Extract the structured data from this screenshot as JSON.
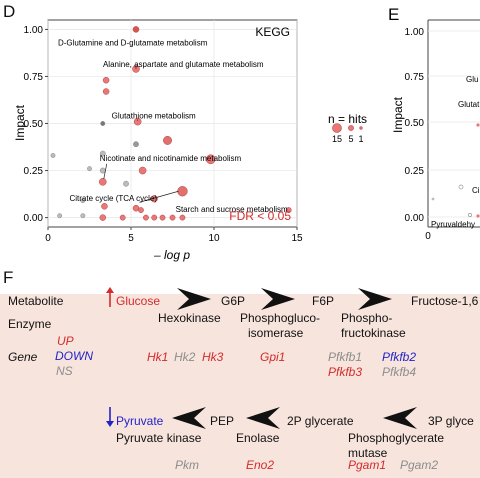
{
  "panel_d": {
    "letter": "D",
    "chart_title": "KEGG",
    "fdr_label": "FDR < 0.05",
    "xlabel": "– log p",
    "ylabel": "Impact",
    "legend": {
      "title": "n = hits",
      "sizes": [
        "15",
        "5",
        "1"
      ]
    }
  },
  "panel_e": {
    "letter": "E",
    "ylabel": "Impact",
    "fragments": [
      "Glu",
      "Glutat",
      "Ci",
      "Pyruvaldehy"
    ]
  },
  "chart_data": [
    {
      "type": "scatter",
      "title": "KEGG",
      "xlabel": "– log p",
      "ylabel": "Impact",
      "xlim": [
        0,
        15
      ],
      "ylim": [
        -0.05,
        1.05
      ],
      "xticks": [
        "0",
        "5",
        "10",
        "15"
      ],
      "yticks": [
        "0.00",
        "0.25",
        "0.50",
        "0.75",
        "1.00"
      ],
      "grid": true,
      "points": [
        {
          "x": 5.3,
          "y": 1.0,
          "n": 3,
          "fill": "#d9534f"
        },
        {
          "x": 5.3,
          "y": 0.79,
          "n": 5,
          "fill": "#e87777"
        },
        {
          "x": 3.5,
          "y": 0.73,
          "n": 3,
          "fill": "#e87777"
        },
        {
          "x": 3.5,
          "y": 0.67,
          "n": 3,
          "fill": "#e87777"
        },
        {
          "x": 5.4,
          "y": 0.51,
          "n": 5,
          "fill": "#e87777"
        },
        {
          "x": 3.3,
          "y": 0.5,
          "n": 1,
          "fill": "#777777"
        },
        {
          "x": 7.2,
          "y": 0.41,
          "n": 8,
          "fill": "#e07070"
        },
        {
          "x": 5.3,
          "y": 0.39,
          "n": 2,
          "fill": "#999999"
        },
        {
          "x": 0.3,
          "y": 0.33,
          "n": 1,
          "fill": "#bbbbbb"
        },
        {
          "x": 3.3,
          "y": 0.34,
          "n": 2,
          "fill": "#bbbbbb"
        },
        {
          "x": 9.8,
          "y": 0.31,
          "n": 10,
          "fill": "#e87777"
        },
        {
          "x": 3.3,
          "y": 0.25,
          "n": 2,
          "fill": "#bbbbbb"
        },
        {
          "x": 5.7,
          "y": 0.25,
          "n": 5,
          "fill": "#e87777"
        },
        {
          "x": 2.5,
          "y": 0.26,
          "n": 1,
          "fill": "#bbbbbb"
        },
        {
          "x": 3.3,
          "y": 0.19,
          "n": 5,
          "fill": "#e87777"
        },
        {
          "x": 4.7,
          "y": 0.18,
          "n": 2,
          "fill": "#bbbbbb"
        },
        {
          "x": 8.1,
          "y": 0.14,
          "n": 12,
          "fill": "#e07070"
        },
        {
          "x": 6.4,
          "y": 0.1,
          "n": 4,
          "fill": "#e87777"
        },
        {
          "x": 2.1,
          "y": 0.09,
          "n": 1,
          "fill": "#bbbbbb"
        },
        {
          "x": 3.4,
          "y": 0.06,
          "n": 3,
          "fill": "#e87777"
        },
        {
          "x": 5.3,
          "y": 0.05,
          "n": 3,
          "fill": "#e87777"
        },
        {
          "x": 5.6,
          "y": 0.04,
          "n": 2,
          "fill": "#e87777"
        },
        {
          "x": 0.7,
          "y": 0.01,
          "n": 1,
          "fill": "#bbbbbb"
        },
        {
          "x": 2.1,
          "y": 0.01,
          "n": 1,
          "fill": "#bbbbbb"
        },
        {
          "x": 3.3,
          "y": 0.0,
          "n": 3,
          "fill": "#e87777"
        },
        {
          "x": 4.5,
          "y": 0.0,
          "n": 2,
          "fill": "#e87777"
        },
        {
          "x": 5.9,
          "y": 0.0,
          "n": 2,
          "fill": "#e87777"
        },
        {
          "x": 6.4,
          "y": 0.0,
          "n": 2,
          "fill": "#e87777"
        },
        {
          "x": 6.9,
          "y": 0.0,
          "n": 2,
          "fill": "#e87777"
        },
        {
          "x": 7.5,
          "y": 0.0,
          "n": 2,
          "fill": "#e87777"
        },
        {
          "x": 8.1,
          "y": 0.0,
          "n": 2,
          "fill": "#e87777"
        },
        {
          "x": 14.5,
          "y": 0.04,
          "n": 2,
          "fill": "#e87777"
        }
      ],
      "annotations": [
        {
          "text": "D-Glutamine and D-glutamate metabolism",
          "x": 5.3,
          "y": 1.0
        },
        {
          "text": "Alanine, aspartate and glutamate metabolism",
          "x": 5.3,
          "y": 0.79
        },
        {
          "text": "Glutathione metabolism",
          "x": 5.4,
          "y": 0.51
        },
        {
          "text": "Nicotinate and nicotinamide metabolism",
          "x": 3.3,
          "y": 0.19
        },
        {
          "text": "Citrate cycle (TCA cycle)",
          "x": 8.1,
          "y": 0.14
        },
        {
          "text": "Starch and sucrose metabolism",
          "x": 14.5,
          "y": 0.04
        }
      ]
    }
  ],
  "panel_f": {
    "letter": "F",
    "row_labels": {
      "metabolite": "Metabolite",
      "enzyme": "Enzyme",
      "gene": "Gene"
    },
    "legend": {
      "up": "UP",
      "down": "DOWN",
      "ns": "NS"
    },
    "metabolites": {
      "glucose": "Glucose",
      "g6p": "G6P",
      "f6p": "F6P",
      "fructose": "Fructose-1,6",
      "pyruvate": "Pyruvate",
      "pep": "PEP",
      "pg2": "2P glycerate",
      "pg3": "3P glyce"
    },
    "enzymes": {
      "hexokinase": "Hexokinase",
      "gpi_l1": "Phosphogluco-",
      "gpi_l2": "isomerase",
      "pfk_l1": "Phospho-",
      "pfk_l2": "fructokinase",
      "pk": "Pyruvate kinase",
      "enolase": "Enolase",
      "pgam_l1": "Phosphoglycerate",
      "pgam_l2": "mutase"
    },
    "genes": {
      "hk1": "Hk1",
      "hk2": "Hk2",
      "hk3": "Hk3",
      "gpi1": "Gpi1",
      "pfkfb1": "Pfkfb1",
      "pfkfb2": "Pfkfb2",
      "pfkfb3": "Pfkfb3",
      "pfkfb4": "Pfkfb4",
      "pkm": "Pkm",
      "eno2": "Eno2",
      "pgam1": "Pgam1",
      "pgam2": "Pgam2"
    },
    "colors": {
      "up": "#d42b2b",
      "down": "#2323c8",
      "ns": "#8c8c8c",
      "background": "#f7e5dd"
    }
  }
}
